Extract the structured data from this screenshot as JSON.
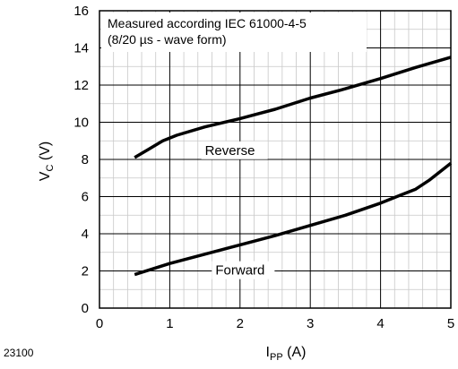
{
  "figure_code": "23100",
  "chart_data": {
    "type": "line",
    "title": "",
    "xlabel": "I",
    "xlabel_sub": "PP",
    "xlabel_unit": " (A)",
    "ylabel": "V",
    "ylabel_sub": "C",
    "ylabel_unit": " (V)",
    "xlim": [
      0,
      5
    ],
    "ylim": [
      0,
      16
    ],
    "x_ticks": [
      "0",
      "1",
      "2",
      "3",
      "4",
      "5"
    ],
    "y_ticks": [
      "0",
      "2",
      "4",
      "6",
      "8",
      "10",
      "12",
      "14",
      "16"
    ],
    "x_minor_step": 0.2,
    "y_minor_step": 1,
    "grid": true,
    "annotation_lines": [
      "Measured according IEC 61000-4-5",
      "(8/20 µs - wave form)"
    ],
    "series": [
      {
        "name": "Reverse",
        "color": "#000000",
        "x": [
          0.5,
          0.7,
          0.9,
          1.1,
          1.5,
          2.0,
          2.5,
          3.0,
          3.5,
          4.0,
          4.5,
          5.0
        ],
        "y": [
          8.1,
          8.55,
          9.0,
          9.3,
          9.75,
          10.2,
          10.7,
          11.3,
          11.8,
          12.35,
          12.95,
          13.5
        ]
      },
      {
        "name": "Forward",
        "color": "#000000",
        "x": [
          0.5,
          1.0,
          1.5,
          2.0,
          2.5,
          3.0,
          3.5,
          4.0,
          4.3,
          4.5,
          4.7,
          5.0
        ],
        "y": [
          1.8,
          2.4,
          2.9,
          3.4,
          3.9,
          4.45,
          5.0,
          5.65,
          6.1,
          6.4,
          6.9,
          7.8
        ]
      }
    ]
  }
}
